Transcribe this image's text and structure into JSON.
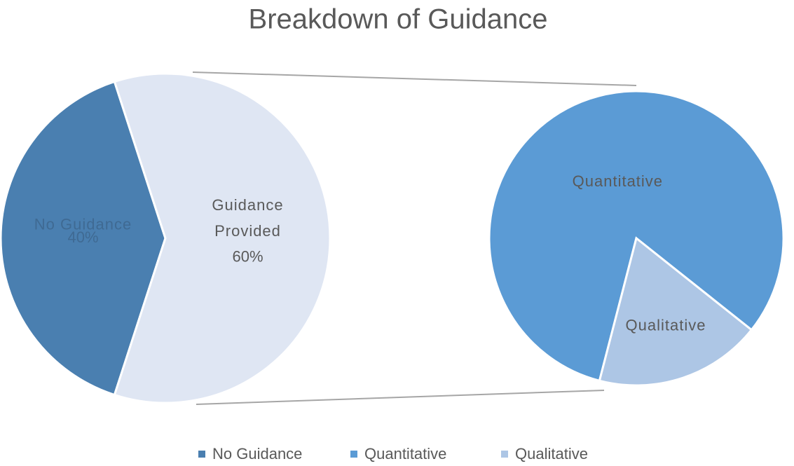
{
  "chart_data": {
    "type": "pie",
    "title": "Breakdown of Guidance",
    "categories": [
      "No Guidance",
      "Guidance Provided"
    ],
    "values": [
      40,
      60
    ],
    "value_labels": [
      "40%",
      "60%"
    ],
    "colors": [
      "#4a7fb0",
      "#dfe6f3"
    ],
    "secondary": {
      "categories": [
        "Quantitative",
        "Qualitative"
      ],
      "values": [
        49,
        11
      ],
      "colors": [
        "#5b9bd5",
        "#adc6e5"
      ]
    },
    "legend": "bottom"
  }
}
